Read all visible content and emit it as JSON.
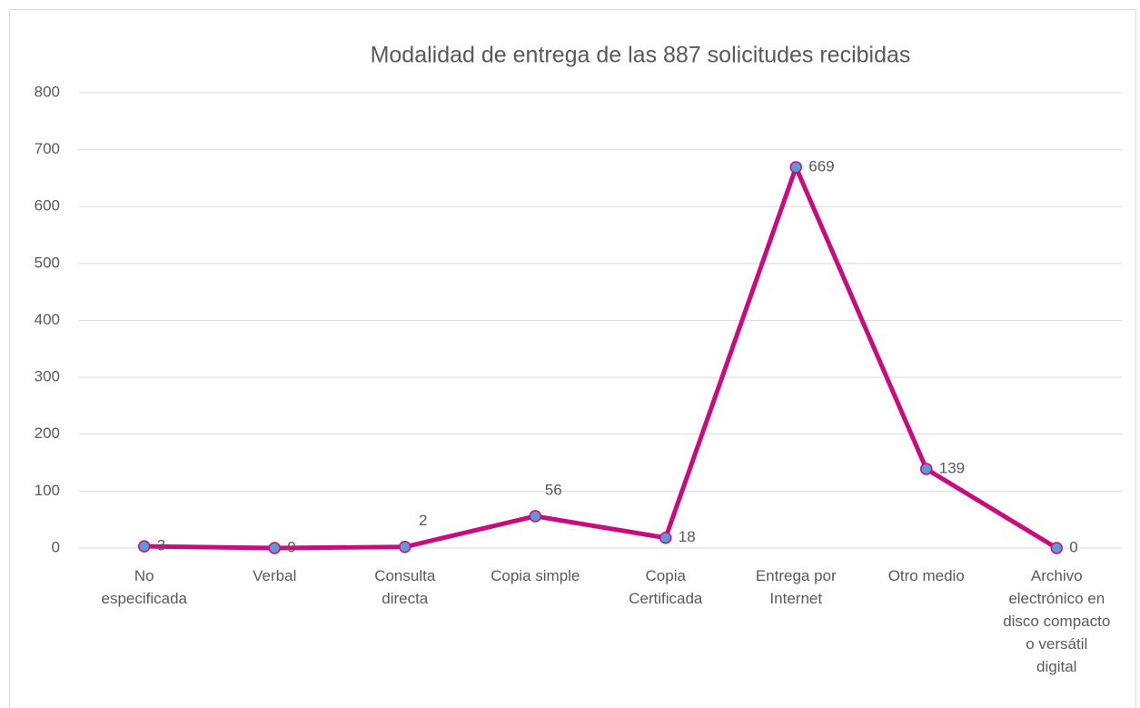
{
  "chart_data": {
    "type": "line",
    "title": "Modalidad de entrega de las 887 solicitudes recibidas",
    "categories": [
      "No especificada",
      "Verbal",
      "Consulta directa",
      "Copia simple",
      "Copia Certificada",
      "Entrega por Internet",
      "Otro medio",
      "Archivo electrónico en disco compacto o versátil digital"
    ],
    "series": [
      {
        "name": "Solicitudes",
        "color": "#cc0a7f",
        "marker_color": "#5b9bd5",
        "values": [
          3,
          0,
          2,
          56,
          18,
          669,
          139,
          0
        ]
      }
    ],
    "ylim": [
      0,
      800
    ],
    "yticks": [
      0,
      100,
      200,
      300,
      400,
      500,
      600,
      700,
      800
    ],
    "grid": true
  }
}
